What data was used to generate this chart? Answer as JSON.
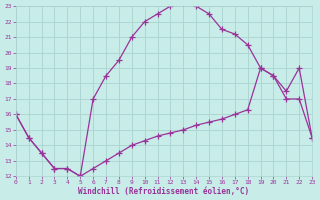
{
  "background_color": "#c8ece8",
  "grid_color": "#aad4d0",
  "line_color": "#993399",
  "xlim": [
    0,
    23
  ],
  "ylim": [
    12,
    23
  ],
  "xticks": [
    0,
    1,
    2,
    3,
    4,
    5,
    6,
    7,
    8,
    9,
    10,
    11,
    12,
    13,
    14,
    15,
    16,
    17,
    18,
    19,
    20,
    21,
    22,
    23
  ],
  "yticks": [
    12,
    13,
    14,
    15,
    16,
    17,
    18,
    19,
    20,
    21,
    22,
    23
  ],
  "xlabel": "Windchill (Refroidissement éolien,°C)",
  "curve1_x": [
    0,
    1,
    2,
    3,
    4,
    5
  ],
  "curve1_y": [
    16,
    14.5,
    13.5,
    12.5,
    12.5,
    12
  ],
  "curve2_x": [
    5,
    6,
    7,
    8,
    9,
    10,
    11,
    12,
    13,
    14,
    15,
    16,
    17,
    18,
    19,
    20,
    21,
    22,
    23
  ],
  "curve2_y": [
    12,
    17,
    18.5,
    19.5,
    21,
    22,
    22.5,
    23,
    23.2,
    23,
    22.5,
    21.5,
    21.2,
    20.5,
    19,
    18.5,
    17,
    17,
    14.5
  ],
  "curve3_x": [
    0,
    1,
    2,
    3,
    4,
    5,
    6,
    7,
    8,
    9,
    10,
    11,
    12,
    13,
    14,
    15,
    16,
    17,
    18,
    19,
    20,
    21,
    22,
    23
  ],
  "curve3_y": [
    16,
    14.5,
    13.5,
    12.5,
    12.5,
    12,
    12.5,
    13.0,
    13.5,
    14.0,
    14.3,
    14.6,
    14.8,
    15.0,
    15.3,
    15.5,
    15.7,
    16.0,
    16.3,
    19.0,
    18.5,
    17.5,
    19.0,
    14.5
  ]
}
